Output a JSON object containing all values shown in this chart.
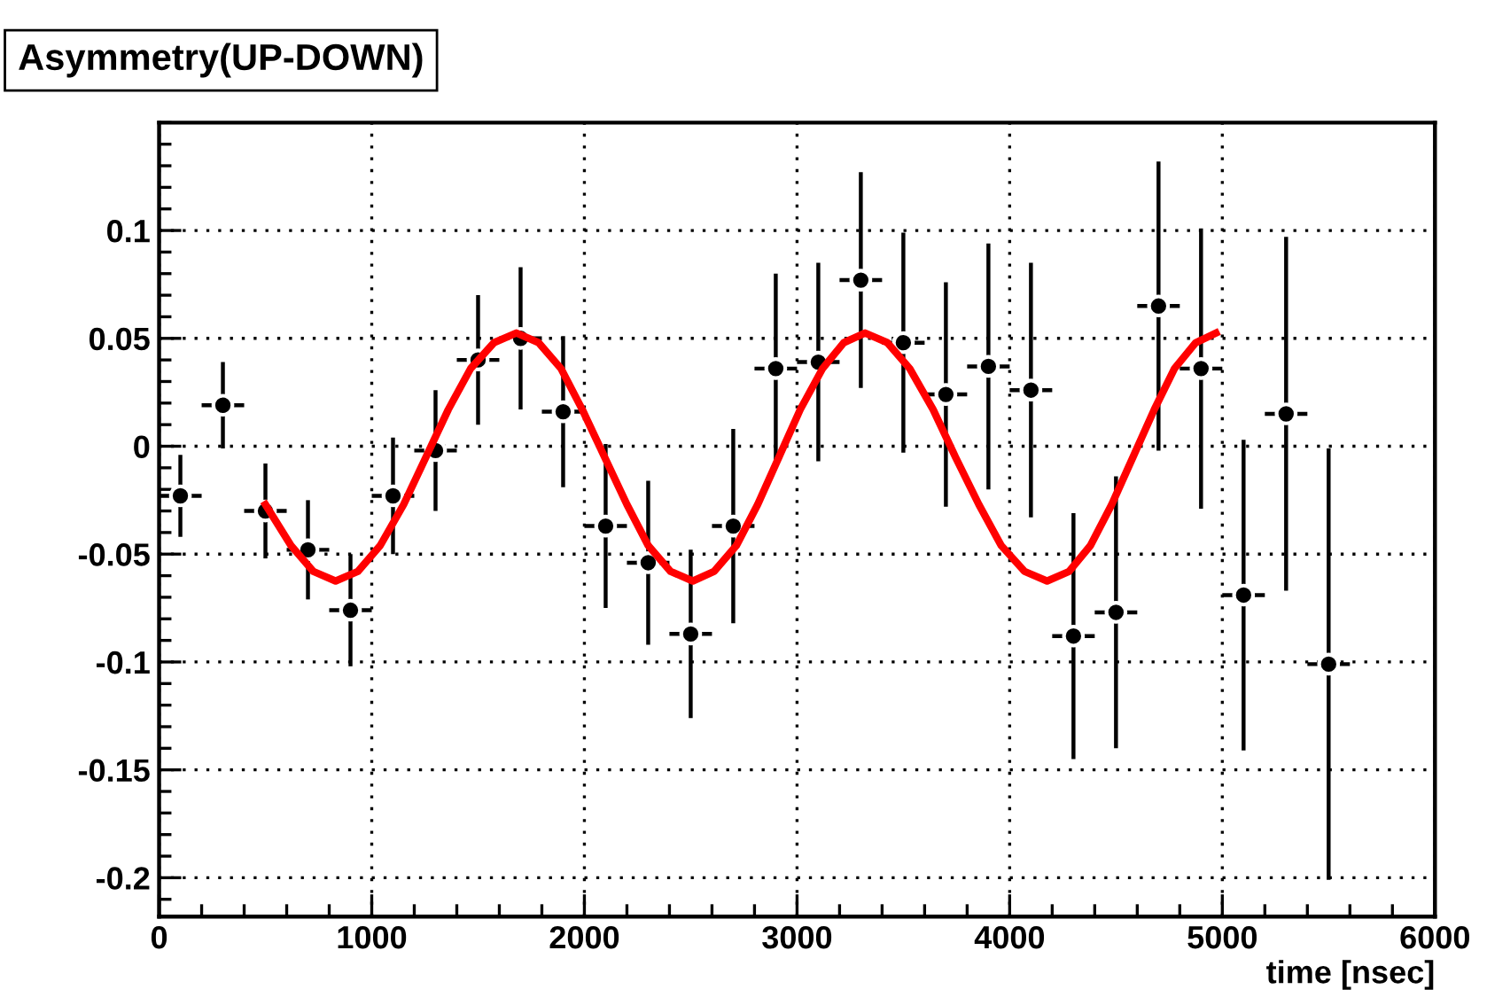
{
  "chart_data": {
    "type": "scatter",
    "title": "Asymmetry(UP-DOWN)",
    "xlabel": "time [nsec]",
    "xlim": [
      0,
      6000
    ],
    "xticks": [
      0,
      1000,
      2000,
      3000,
      4000,
      5000,
      6000
    ],
    "ylim": [
      -0.218,
      0.15
    ],
    "yticks": [
      -0.2,
      -0.15,
      -0.1,
      -0.05,
      0,
      0.05,
      0.1
    ],
    "grid": true,
    "marker": "circle",
    "series": [
      {
        "color": "#000000",
        "x": [
          100,
          300,
          500,
          700,
          900,
          1100,
          1300,
          1500,
          1700,
          1900,
          2100,
          2300,
          2500,
          2700,
          2900,
          3100,
          3300,
          3500,
          3700,
          3900,
          4100,
          4300,
          4500,
          4700,
          4900,
          5100,
          5300,
          5500
        ],
        "values": [
          -0.023,
          0.019,
          -0.03,
          -0.048,
          -0.076,
          -0.023,
          -0.002,
          0.04,
          0.05,
          0.016,
          -0.037,
          -0.054,
          -0.087,
          -0.037,
          0.036,
          0.039,
          0.077,
          0.048,
          0.024,
          0.037,
          0.026,
          -0.088,
          -0.077,
          0.065,
          0.036,
          -0.069,
          0.015,
          -0.101
        ],
        "errors": [
          0.019,
          0.02,
          0.022,
          0.023,
          0.026,
          0.027,
          0.028,
          0.03,
          0.033,
          0.035,
          0.038,
          0.038,
          0.039,
          0.045,
          0.044,
          0.046,
          0.05,
          0.051,
          0.052,
          0.057,
          0.059,
          0.057,
          0.063,
          0.067,
          0.065,
          0.072,
          0.082,
          0.1
        ],
        "xerrors": [
          100,
          100,
          100,
          100,
          100,
          100,
          100,
          100,
          100,
          100,
          100,
          100,
          100,
          100,
          100,
          100,
          100,
          100,
          100,
          100,
          100,
          100,
          100,
          100,
          100,
          100,
          100,
          100
        ]
      },
      {
        "type": "line",
        "color": "#ff0000",
        "marker": "none",
        "line_style": "solid",
        "x": [
          500,
          620,
          725,
          830,
          935,
          1040,
          1150,
          1255,
          1360,
          1465,
          1575,
          1680,
          1785,
          1890,
          1990,
          2095,
          2200,
          2300,
          2405,
          2510,
          2610,
          2715,
          2815,
          2915,
          3015,
          3120,
          3220,
          3320,
          3425,
          3530,
          3640,
          3745,
          3855,
          3960,
          4070,
          4176,
          4280,
          4380,
          4480,
          4580,
          4680,
          4775,
          4875,
          4970
        ],
        "values": [
          -0.027,
          -0.046,
          -0.058,
          -0.0625,
          -0.058,
          -0.046,
          -0.027,
          -0.005,
          0.017,
          0.036,
          0.048,
          0.0525,
          0.048,
          0.036,
          0.017,
          -0.005,
          -0.027,
          -0.046,
          -0.058,
          -0.0625,
          -0.058,
          -0.046,
          -0.027,
          -0.005,
          0.017,
          0.036,
          0.048,
          0.0525,
          0.048,
          0.036,
          0.017,
          -0.005,
          -0.027,
          -0.046,
          -0.058,
          -0.0625,
          -0.058,
          -0.046,
          -0.027,
          -0.005,
          0.017,
          0.036,
          0.048,
          0.0525
        ]
      }
    ]
  }
}
